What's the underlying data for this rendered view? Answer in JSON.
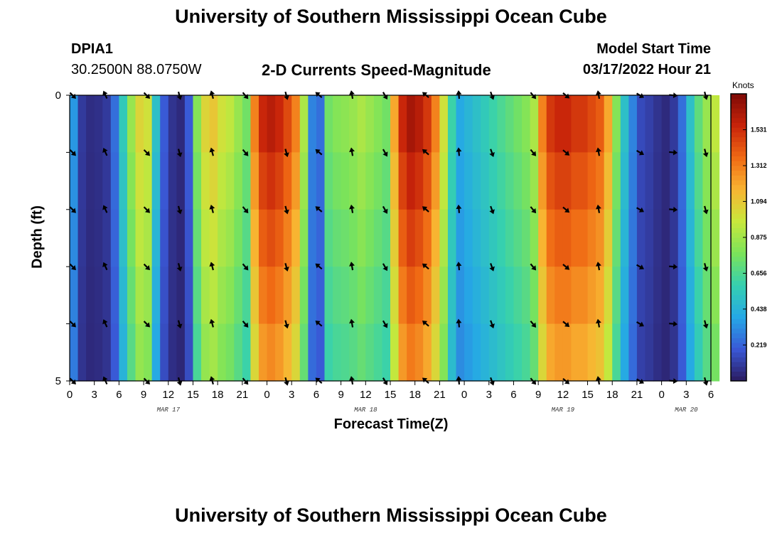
{
  "header": {
    "title": "University of Southern Mississippi Ocean Cube",
    "station_id": "DPIA1",
    "coords": "30.2500N  88.0750W",
    "subtitle": "2-D Currents Speed-Magnitude",
    "model_label": "Model Start Time",
    "model_time": "03/17/2022 Hour 21"
  },
  "footer": {
    "title": "University of Southern Mississippi Ocean Cube"
  },
  "colors": {
    "scale": [
      "#2a1a5e",
      "#3a58d6",
      "#25a8e6",
      "#35d0b0",
      "#7be35a",
      "#c8e83c",
      "#f8b532",
      "#f06a14",
      "#c8240a",
      "#7f0a06"
    ]
  },
  "chart_data": {
    "type": "heatmap",
    "title": "2-D Currents Speed-Magnitude",
    "xlabel": "Forecast Time(Z)",
    "ylabel": "Depth (ft)",
    "ylim": [
      0,
      5
    ],
    "yticks": [
      "0",
      "5"
    ],
    "xlim": [
      0,
      78
    ],
    "xticks": [
      "0",
      "3",
      "6",
      "9",
      "12",
      "15",
      "18",
      "21",
      "0",
      "3",
      "6",
      "9",
      "12",
      "15",
      "18",
      "21",
      "0",
      "3",
      "6",
      "9",
      "12",
      "15",
      "18",
      "21",
      "0",
      "3",
      "6"
    ],
    "day_labels": [
      {
        "label": "MAR 17",
        "hour": 12
      },
      {
        "label": "MAR 18",
        "hour": 36
      },
      {
        "label": "MAR 19",
        "hour": 60
      },
      {
        "label": "MAR 20",
        "hour": 75
      }
    ],
    "colorbar": {
      "title": "Knots",
      "min": 0,
      "max": 1.75,
      "ticks": [
        "0.219",
        "0.438",
        "0.656",
        "0.875",
        "1.094",
        "1.312",
        "1.531"
      ]
    },
    "speed_by_hour": [
      0.35,
      0.1,
      0.06,
      0.07,
      0.1,
      0.25,
      0.55,
      0.85,
      1.05,
      1.0,
      0.5,
      0.2,
      0.08,
      0.05,
      0.2,
      0.8,
      1.05,
      1.1,
      1.0,
      0.95,
      0.85,
      0.75,
      1.3,
      1.55,
      1.6,
      1.55,
      1.45,
      1.3,
      0.9,
      0.3,
      0.25,
      0.75,
      0.8,
      0.82,
      0.85,
      0.9,
      0.85,
      0.8,
      0.75,
      1.2,
      1.55,
      1.65,
      1.6,
      1.5,
      1.3,
      1.0,
      0.6,
      0.4,
      0.45,
      0.5,
      0.55,
      0.6,
      0.65,
      0.7,
      0.75,
      0.8,
      0.9,
      1.3,
      1.5,
      1.55,
      1.55,
      1.5,
      1.5,
      1.45,
      1.4,
      1.2,
      0.8,
      0.5,
      0.3,
      0.15,
      0.12,
      0.08,
      0.05,
      0.1,
      0.25,
      0.5,
      0.7,
      0.85,
      0.95
    ],
    "arrow_hours": [
      0,
      4,
      9,
      13,
      17,
      21,
      26,
      30,
      34,
      38,
      43,
      47,
      51,
      56,
      60,
      64,
      69,
      73,
      77
    ],
    "arrow_depths": [
      0,
      1,
      2,
      3,
      4,
      5
    ],
    "arrow_directions_deg": [
      135,
      -25,
      135,
      165,
      -15,
      140,
      165,
      -50,
      -10,
      150,
      -50,
      -5,
      160,
      140,
      130,
      -10,
      120,
      95,
      165
    ]
  }
}
